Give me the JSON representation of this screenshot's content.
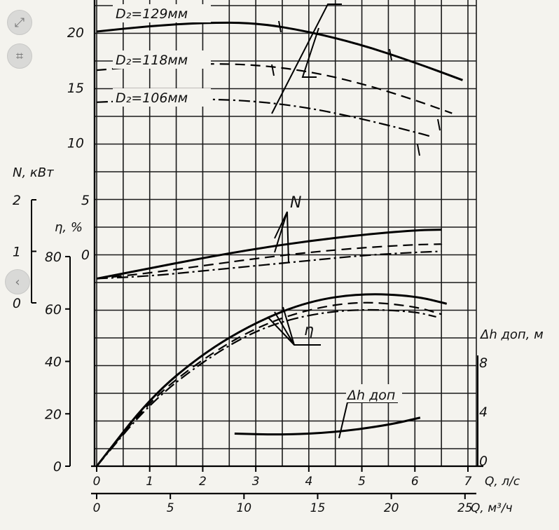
{
  "viewer": {
    "expand_glyph": "⤢",
    "crop_glyph": "⌗",
    "prev_glyph": "‹"
  },
  "chart_data": {
    "type": "line",
    "x_axes": {
      "primary": {
        "label": "Q, л/с",
        "ticks": [
          0,
          1,
          2,
          3,
          4,
          5,
          6,
          7
        ],
        "range": [
          0,
          7
        ]
      },
      "secondary": {
        "label": "Q, м³/ч",
        "ticks": [
          0,
          5,
          10,
          15,
          20,
          25
        ],
        "range": [
          0,
          25.2
        ]
      }
    },
    "y_axes": {
      "head": {
        "ticks": [
          10,
          15,
          20
        ],
        "range": [
          0,
          22
        ]
      },
      "power": {
        "label": "N, кВт",
        "ticks": [
          0,
          1,
          2
        ],
        "range": [
          0,
          2
        ]
      },
      "efficiency": {
        "label": "η, %",
        "ticks": [
          0,
          20,
          40,
          60,
          80
        ],
        "range": [
          0,
          80
        ]
      },
      "npsh": {
        "label": "Δh доп, м",
        "ticks": [
          0,
          4,
          8
        ],
        "range": [
          0,
          8
        ]
      },
      "head_inner": {
        "ticks": [
          0,
          5
        ],
        "note": "inner head scale"
      }
    },
    "annotations": {
      "N": "N",
      "eta": "η",
      "npsh": "Δh доп"
    },
    "series": [
      {
        "name": "D₂=129мм",
        "kind": "head",
        "style": "solid",
        "points": [
          [
            0,
            20.0
          ],
          [
            1,
            20.5
          ],
          [
            2,
            20.8
          ],
          [
            3,
            20.8
          ],
          [
            4,
            20.0
          ],
          [
            5,
            18.8
          ],
          [
            6,
            17.2
          ],
          [
            6.9,
            15.6
          ]
        ]
      },
      {
        "name": "D₂=118мм",
        "kind": "head",
        "style": "dashed",
        "points": [
          [
            0,
            16.5
          ],
          [
            1,
            16.9
          ],
          [
            2,
            17.1
          ],
          [
            3,
            17.0
          ],
          [
            4,
            16.4
          ],
          [
            5,
            15.3
          ],
          [
            6,
            13.8
          ],
          [
            6.7,
            12.6
          ]
        ]
      },
      {
        "name": "D₂=106мм",
        "kind": "head",
        "style": "dashdot",
        "points": [
          [
            0,
            13.6
          ],
          [
            1,
            13.8
          ],
          [
            2,
            13.9
          ],
          [
            3,
            13.7
          ],
          [
            4,
            13.1
          ],
          [
            5,
            12.1
          ],
          [
            6,
            10.9
          ],
          [
            6.3,
            10.5
          ]
        ]
      },
      {
        "name": "N 129",
        "kind": "power",
        "style": "solid",
        "points": [
          [
            0,
            0.47
          ],
          [
            1,
            0.67
          ],
          [
            2,
            0.87
          ],
          [
            3,
            1.05
          ],
          [
            4,
            1.2
          ],
          [
            5,
            1.32
          ],
          [
            6,
            1.41
          ],
          [
            6.5,
            1.42
          ]
        ]
      },
      {
        "name": "N 118",
        "kind": "power",
        "style": "dashed",
        "points": [
          [
            0,
            0.47
          ],
          [
            1,
            0.58
          ],
          [
            2,
            0.72
          ],
          [
            3,
            0.86
          ],
          [
            4,
            0.98
          ],
          [
            5,
            1.07
          ],
          [
            6,
            1.13
          ],
          [
            6.5,
            1.14
          ]
        ]
      },
      {
        "name": "N 106",
        "kind": "power",
        "style": "dashdot",
        "points": [
          [
            0,
            0.47
          ],
          [
            1,
            0.52
          ],
          [
            2,
            0.62
          ],
          [
            3,
            0.72
          ],
          [
            4,
            0.82
          ],
          [
            5,
            0.92
          ],
          [
            6,
            0.98
          ],
          [
            6.5,
            1.0
          ]
        ]
      },
      {
        "name": "η 129",
        "kind": "efficiency",
        "style": "solid",
        "points": [
          [
            0,
            0
          ],
          [
            1,
            26
          ],
          [
            2,
            43
          ],
          [
            3,
            55
          ],
          [
            4,
            63
          ],
          [
            5,
            66
          ],
          [
            6,
            65
          ],
          [
            6.6,
            62
          ]
        ]
      },
      {
        "name": "η 118",
        "kind": "efficiency",
        "style": "dashed",
        "points": [
          [
            0,
            0
          ],
          [
            1,
            25
          ],
          [
            2,
            41
          ],
          [
            3,
            53
          ],
          [
            4,
            60
          ],
          [
            5,
            63
          ],
          [
            6,
            61
          ],
          [
            6.5,
            58
          ]
        ]
      },
      {
        "name": "η 106",
        "kind": "efficiency",
        "style": "dashdot",
        "points": [
          [
            0,
            0
          ],
          [
            1,
            24
          ],
          [
            2,
            40
          ],
          [
            3,
            52
          ],
          [
            4,
            58
          ],
          [
            5,
            60
          ],
          [
            6,
            59
          ],
          [
            6.4,
            57
          ]
        ]
      },
      {
        "name": "Δh доп",
        "kind": "npsh",
        "style": "solid",
        "points": [
          [
            2.6,
            2.2
          ],
          [
            3.5,
            2.1
          ],
          [
            4.5,
            2.3
          ],
          [
            5.5,
            2.9
          ],
          [
            6.1,
            3.5
          ]
        ]
      }
    ],
    "grid": true
  }
}
